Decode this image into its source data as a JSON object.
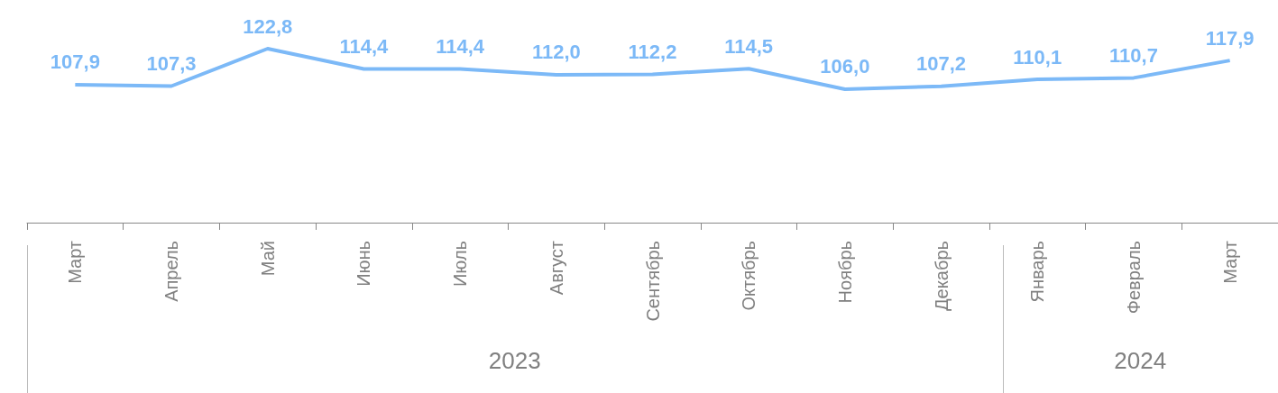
{
  "chart_data": {
    "type": "line",
    "categories": [
      "Март",
      "Апрель",
      "Май",
      "Июнь",
      "Июль",
      "Август",
      "Сентябрь",
      "Октябрь",
      "Ноябрь",
      "Декабрь",
      "Январь",
      "Февраль",
      "Март"
    ],
    "series": [
      {
        "color": "#7cb9f7",
        "values": [
          107.9,
          107.3,
          122.8,
          114.4,
          114.4,
          112.0,
          112.2,
          114.5,
          106.0,
          107.2,
          110.1,
          110.7,
          117.9
        ],
        "value_labels": [
          "107,9",
          "107,3",
          "122,8",
          "114,4",
          "114,4",
          "112,0",
          "112,2",
          "114,5",
          "106,0",
          "107,2",
          "110,1",
          "110,7",
          "117,9"
        ]
      }
    ],
    "annotations": [
      "2023",
      "2024"
    ],
    "marker": "none",
    "line_style": "solid"
  }
}
